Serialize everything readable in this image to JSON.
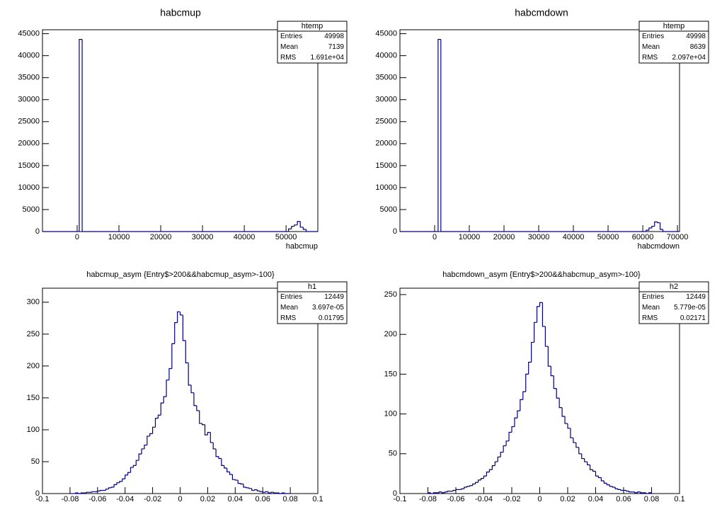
{
  "chart_data": [
    {
      "type": "histogram",
      "title": "habcmup",
      "xlabel": "habcmup",
      "color": "#000080",
      "bins": [
        -8300,
        500,
        1200,
        50600,
        51300,
        52000,
        52700,
        53400,
        54100,
        54800,
        57600
      ],
      "values": [
        0,
        43700,
        0,
        600,
        1200,
        1500,
        2300,
        1000,
        500,
        0
      ],
      "xlim": [
        -8300,
        57600
      ],
      "ylim": [
        0,
        45900
      ],
      "xticks": [
        0,
        10000,
        20000,
        30000,
        40000,
        50000
      ],
      "yticks": [
        0,
        5000,
        10000,
        15000,
        20000,
        25000,
        30000,
        35000,
        40000,
        45000
      ],
      "stats": {
        "title": "htemp",
        "rows": [
          [
            "Entries",
            "49998"
          ],
          [
            "Mean",
            "7139"
          ],
          [
            "RMS",
            "1.691e+04"
          ]
        ]
      }
    },
    {
      "type": "histogram",
      "title": "habcmdown",
      "xlabel": "habcmdown",
      "color": "#000080",
      "bins": [
        -10000,
        1000,
        1800,
        61000,
        61800,
        62600,
        63400,
        64200,
        65000,
        65800,
        70600
      ],
      "values": [
        0,
        43700,
        0,
        300,
        800,
        1200,
        2200,
        2000,
        500,
        0
      ],
      "xlim": [
        -10000,
        70600
      ],
      "ylim": [
        0,
        45900
      ],
      "xticks": [
        0,
        10000,
        20000,
        30000,
        40000,
        50000,
        60000,
        70000
      ],
      "yticks": [
        0,
        5000,
        10000,
        15000,
        20000,
        25000,
        30000,
        35000,
        40000,
        45000
      ],
      "stats": {
        "title": "htemp",
        "rows": [
          [
            "Entries",
            "49998"
          ],
          [
            "Mean",
            "8639"
          ],
          [
            "RMS",
            "2.097e+04"
          ]
        ]
      }
    },
    {
      "type": "histogram",
      "title": "habcmup_asym {Entry$>200&&habcmup_asym>-100}",
      "color": "#000080",
      "bins": [
        -0.08,
        -0.078,
        -0.076,
        -0.074,
        -0.072,
        -0.07,
        -0.068,
        -0.066,
        -0.064,
        -0.062,
        -0.06,
        -0.058,
        -0.056,
        -0.054,
        -0.052,
        -0.05,
        -0.048,
        -0.046,
        -0.044,
        -0.042,
        -0.04,
        -0.038,
        -0.036,
        -0.034,
        -0.032,
        -0.03,
        -0.028,
        -0.026,
        -0.024,
        -0.022,
        -0.02,
        -0.018,
        -0.016,
        -0.014,
        -0.012,
        -0.01,
        -0.008,
        -0.006,
        -0.004,
        -0.002,
        0,
        0.002,
        0.004,
        0.006,
        0.008,
        0.01,
        0.012,
        0.014,
        0.016,
        0.018,
        0.02,
        0.022,
        0.024,
        0.026,
        0.028,
        0.03,
        0.032,
        0.034,
        0.036,
        0.038,
        0.04,
        0.042,
        0.044,
        0.046,
        0.048,
        0.05,
        0.052,
        0.054,
        0.056,
        0.058,
        0.06,
        0.062,
        0.064,
        0.066,
        0.068,
        0.07,
        0.072,
        0.074,
        0.076,
        0.078,
        0.08
      ],
      "values": [
        0,
        0,
        1,
        0,
        1,
        1,
        2,
        2,
        3,
        3,
        4,
        5,
        5,
        7,
        9,
        10,
        14,
        17,
        19,
        23,
        29,
        33,
        41,
        44,
        52,
        62,
        70,
        76,
        90,
        94,
        104,
        118,
        123,
        142,
        152,
        178,
        196,
        235,
        268,
        285,
        280,
        240,
        205,
        170,
        158,
        138,
        130,
        110,
        108,
        92,
        96,
        80,
        70,
        58,
        55,
        44,
        40,
        34,
        30,
        22,
        21,
        16,
        15,
        10,
        9,
        8,
        5,
        6,
        4,
        3,
        2,
        3,
        1,
        2,
        1,
        1,
        0,
        1,
        0,
        0
      ],
      "xlim": [
        -0.1,
        0.1
      ],
      "ylim": [
        0,
        322
      ],
      "xticks": [
        -0.1,
        -0.08,
        -0.06,
        -0.04,
        -0.02,
        0,
        0.02,
        0.04,
        0.06,
        0.08,
        0.1
      ],
      "yticks": [
        0,
        50,
        100,
        150,
        200,
        250,
        300
      ],
      "stats": {
        "title": "h1",
        "rows": [
          [
            "Entries",
            "12449"
          ],
          [
            "Mean",
            "3.697e-05"
          ],
          [
            "RMS",
            "0.01795"
          ]
        ]
      }
    },
    {
      "type": "histogram",
      "title": "habcmdown_asym {Entry$>200&&habcmup_asym>-100}",
      "color": "#000080",
      "bins": [
        -0.08,
        -0.078,
        -0.076,
        -0.074,
        -0.072,
        -0.07,
        -0.068,
        -0.066,
        -0.064,
        -0.062,
        -0.06,
        -0.058,
        -0.056,
        -0.054,
        -0.052,
        -0.05,
        -0.048,
        -0.046,
        -0.044,
        -0.042,
        -0.04,
        -0.038,
        -0.036,
        -0.034,
        -0.032,
        -0.03,
        -0.028,
        -0.026,
        -0.024,
        -0.022,
        -0.02,
        -0.018,
        -0.016,
        -0.014,
        -0.012,
        -0.01,
        -0.008,
        -0.006,
        -0.004,
        -0.002,
        0,
        0.002,
        0.004,
        0.006,
        0.008,
        0.01,
        0.012,
        0.014,
        0.016,
        0.018,
        0.02,
        0.022,
        0.024,
        0.026,
        0.028,
        0.03,
        0.032,
        0.034,
        0.036,
        0.038,
        0.04,
        0.042,
        0.044,
        0.046,
        0.048,
        0.05,
        0.052,
        0.054,
        0.056,
        0.058,
        0.06,
        0.062,
        0.064,
        0.066,
        0.068,
        0.07,
        0.072,
        0.074,
        0.076,
        0.078,
        0.08
      ],
      "values": [
        1,
        0,
        1,
        1,
        2,
        1,
        2,
        3,
        3,
        4,
        5,
        5,
        6,
        8,
        9,
        10,
        12,
        14,
        17,
        19,
        22,
        27,
        30,
        35,
        40,
        46,
        52,
        60,
        66,
        77,
        84,
        95,
        104,
        118,
        128,
        150,
        165,
        190,
        215,
        235,
        240,
        210,
        185,
        160,
        148,
        132,
        120,
        108,
        97,
        88,
        82,
        70,
        64,
        58,
        50,
        44,
        40,
        36,
        30,
        28,
        22,
        20,
        16,
        13,
        11,
        9,
        8,
        6,
        5,
        4,
        4,
        3,
        2,
        2,
        1,
        2,
        1,
        1,
        0,
        1
      ],
      "xlim": [
        -0.1,
        0.1
      ],
      "ylim": [
        0,
        258
      ],
      "xticks": [
        -0.1,
        -0.08,
        -0.06,
        -0.04,
        -0.02,
        0,
        0.02,
        0.04,
        0.06,
        0.08,
        0.1
      ],
      "yticks": [
        0,
        50,
        100,
        150,
        200,
        250
      ],
      "stats": {
        "title": "h2",
        "rows": [
          [
            "Entries",
            "12449"
          ],
          [
            "Mean",
            "5.779e-05"
          ],
          [
            "RMS",
            "0.02171"
          ]
        ]
      }
    }
  ]
}
